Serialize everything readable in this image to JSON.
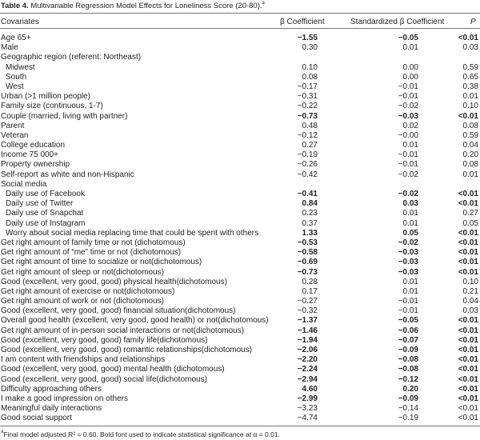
{
  "title": {
    "label": "Table 4.",
    "text": "Multivariable Regression Model Effects for Loneliness Score (20-80).",
    "note_mark": "a"
  },
  "headers": {
    "covariates": "Covariates",
    "beta": "β Coefficient",
    "std_beta": "Standardized β Coefficient",
    "p": "P"
  },
  "rows": [
    {
      "label": "Age 65+",
      "beta": "−1.55",
      "std": "−0.05",
      "p": "<0.01",
      "bold": true
    },
    {
      "label": "Male",
      "beta": "0.30",
      "std": "0.01",
      "p": "0.03"
    },
    {
      "label": "Geographic region (referent: Northeast)",
      "beta": "",
      "std": "",
      "p": ""
    },
    {
      "label": "Midwest",
      "beta": "0.10",
      "std": "0.00",
      "p": "0.59",
      "indent": true
    },
    {
      "label": "South",
      "beta": "0.08",
      "std": "0.00",
      "p": "0.65",
      "indent": true
    },
    {
      "label": "West",
      "beta": "−0.17",
      "std": "−0.01",
      "p": "0.38",
      "indent": true
    },
    {
      "label": "Urban (>1 million people)",
      "beta": "−0.31",
      "std": "−0.01",
      "p": "0.01"
    },
    {
      "label": "Family size (continuous, 1-7)",
      "beta": "−0.22",
      "std": "−0.02",
      "p": "0.10"
    },
    {
      "label": "Couple (married, living with partner)",
      "beta": "−0.73",
      "std": "−0.03",
      "p": "<0.01",
      "bold": true
    },
    {
      "label": "Parent",
      "beta": "0.48",
      "std": "0.02",
      "p": "0.08"
    },
    {
      "label": "Veteran",
      "beta": "−0.12",
      "std": "−0.00",
      "p": "0.59"
    },
    {
      "label": "College education",
      "beta": "0.27",
      "std": "0.01",
      "p": "0.04"
    },
    {
      "label": "Income 75 000+",
      "beta": "−0.19",
      "std": "−0.01",
      "p": "0.20"
    },
    {
      "label": "Property ownership",
      "beta": "−0.26",
      "std": "−0.01",
      "p": "0.08"
    },
    {
      "label": "Self-report as white and non-Hispanic",
      "beta": "−0.42",
      "std": "−0.02",
      "p": "0.01"
    },
    {
      "label": "Social media",
      "beta": "",
      "std": "",
      "p": ""
    },
    {
      "label": "Daily use of Facebook",
      "beta": "−0.41",
      "std": "−0.02",
      "p": "<0.01",
      "bold": true,
      "indent": true
    },
    {
      "label": "Daily use of Twitter",
      "beta": "0.84",
      "std": "0.03",
      "p": "<0.01",
      "bold": true,
      "indent": true
    },
    {
      "label": "Daily use of Snapchat",
      "beta": "0.23",
      "std": "0.01",
      "p": "0.27",
      "indent": true
    },
    {
      "label": "Daily use of Instagram",
      "beta": "0.37",
      "std": "0.01",
      "p": "0.05",
      "indent": true
    },
    {
      "label": "Worry about social media replacing time that could be spent with others",
      "beta": "1.33",
      "std": "0.05",
      "p": "<0.01",
      "bold": true,
      "indent": true
    },
    {
      "label": "Get right amount of family time or not (dichotomous)",
      "beta": "−0.53",
      "std": "−0.02",
      "p": "<0.01",
      "bold": true
    },
    {
      "label": "Get right amount of “me” time or not (dichotomous)",
      "beta": "−0.58",
      "std": "−0.03",
      "p": "<0.01",
      "bold": true
    },
    {
      "label": "Get right amount of time to socialize or not(dichotomous)",
      "beta": "−0.69",
      "std": "−0.03",
      "p": "<0.01",
      "bold": true
    },
    {
      "label": "Get right amount of sleep or not(dichotomous)",
      "beta": "−0.73",
      "std": "−0.03",
      "p": "<0.01",
      "bold": true
    },
    {
      "label": "Good (excellent, very good, good) physical health(dichotomous)",
      "beta": "0.28",
      "std": "0.01",
      "p": "0.10"
    },
    {
      "label": "Get right amount of exercise or not(dichotomous)",
      "beta": "0.17",
      "std": "0.01",
      "p": "0.21"
    },
    {
      "label": "Get right amount of work or not (dichotomous)",
      "beta": "−0.27",
      "std": "−0.01",
      "p": "0.04"
    },
    {
      "label": "Good (excellent, very good, good) financial situation(dichotomous)",
      "beta": "−0.32",
      "std": "−0.01",
      "p": "0.03"
    },
    {
      "label": "Overall good health (excellent, very good, good health) or not(dichotomous)",
      "beta": "−1.37",
      "std": "−0.05",
      "p": "<0.01",
      "bold": true
    },
    {
      "label": "Get right amount of in-person social interactions or not(dichotomous)",
      "beta": "−1.46",
      "std": "−0.06",
      "p": "<0.01",
      "bold": true
    },
    {
      "label": "Good (excellent, very good, good) family life(dichotomous)",
      "beta": "−1.94",
      "std": "−0.07",
      "p": "<0.01",
      "bold": true
    },
    {
      "label": "Good (excellent, very good, good) romantic relationships(dichotomous)",
      "beta": "−2.06",
      "std": "−0.09",
      "p": "<0.01",
      "bold": true
    },
    {
      "label": "I am content with friendships and relationships",
      "beta": "−2.20",
      "std": "−0.08",
      "p": "<0.01",
      "bold": true
    },
    {
      "label": "Good (excellent, very good, good) mental health (dichotomous)",
      "beta": "−2.24",
      "std": "−0.08",
      "p": "<0.01",
      "bold": true
    },
    {
      "label": "Good (excellent, very good, good) social life(dichotomous)",
      "beta": "−2.94",
      "std": "−0.12",
      "p": "<0.01",
      "bold": true
    },
    {
      "label": "Difficulty approaching others",
      "beta": "4.60",
      "std": "0.20",
      "p": "<0.01",
      "bold": true
    },
    {
      "label": "I make a good impression on others",
      "beta": "−2.99",
      "std": "−0.09",
      "p": "<0.01",
      "bold": true
    },
    {
      "label": "Meaningful daily interactions",
      "beta": "−3.23",
      "std": "−0.14",
      "p": "<0.01"
    },
    {
      "label": "Good social support",
      "beta": "−4.74",
      "std": "−0.19",
      "p": "<0.01"
    }
  ],
  "footnote": {
    "mark": "a",
    "text": "Final model adjusted R² = 0.60. Bold font used to indicate statistical significance at α = 0.01."
  }
}
